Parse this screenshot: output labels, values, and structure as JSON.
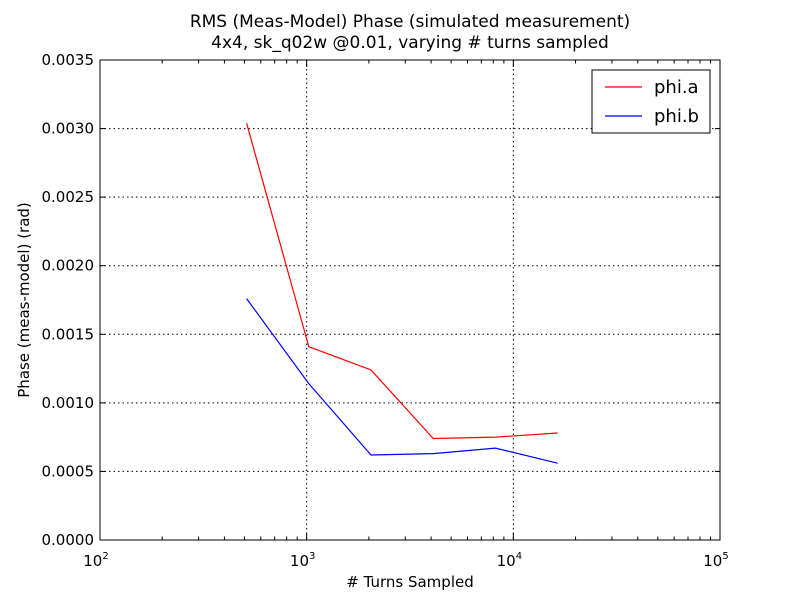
{
  "chart_data": {
    "type": "line",
    "title": "RMS (Meas-Model) Phase (simulated measurement)",
    "subtitle": "4x4, sk_q02w @0.01, varying # turns sampled",
    "xlabel": "# Turns Sampled",
    "ylabel": "Phase (meas-model) (rad)",
    "xscale": "log",
    "xlim": [
      100,
      100000
    ],
    "ylim": [
      0,
      0.0035
    ],
    "x_ticks": [
      {
        "value": 100,
        "base": "10",
        "exp": "2"
      },
      {
        "value": 1000,
        "base": "10",
        "exp": "3"
      },
      {
        "value": 10000,
        "base": "10",
        "exp": "4"
      },
      {
        "value": 100000,
        "base": "10",
        "exp": "5"
      }
    ],
    "y_ticks": [
      {
        "value": 0,
        "label": "0.0000"
      },
      {
        "value": 0.0005,
        "label": "0.0005"
      },
      {
        "value": 0.001,
        "label": "0.0010"
      },
      {
        "value": 0.0015,
        "label": "0.0015"
      },
      {
        "value": 0.002,
        "label": "0.0020"
      },
      {
        "value": 0.0025,
        "label": "0.0025"
      },
      {
        "value": 0.003,
        "label": "0.0030"
      },
      {
        "value": 0.0035,
        "label": "0.0035"
      }
    ],
    "grid": true,
    "legend_position": "top-right",
    "x": [
      512,
      1024,
      2048,
      4096,
      8192,
      16384
    ],
    "series": [
      {
        "name": "phi.a",
        "color": "#ff0000",
        "values": [
          0.00304,
          0.00141,
          0.00124,
          0.00074,
          0.00075,
          0.00078
        ]
      },
      {
        "name": "phi.b",
        "color": "#0000ff",
        "values": [
          0.00176,
          0.00114,
          0.00062,
          0.00063,
          0.00067,
          0.00056
        ]
      }
    ]
  }
}
